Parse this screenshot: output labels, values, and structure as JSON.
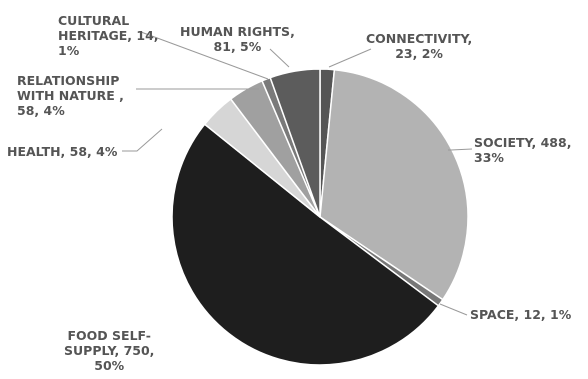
{
  "chart_data": {
    "type": "pie",
    "slices": [
      {
        "name": "CONNECTIVITY",
        "value": 23,
        "percent": "2%",
        "color": "#555555",
        "label_lines": [
          "CONNECTIVITY,",
          "23, 2%"
        ]
      },
      {
        "name": "SOCIETY",
        "value": 488,
        "percent": "33%",
        "color": "#b3b3b3",
        "label_lines": [
          "SOCIETY, 488,",
          "33%"
        ]
      },
      {
        "name": "SPACE",
        "value": 12,
        "percent": "1%",
        "color": "#777777",
        "label_lines": [
          "SPACE, 12, 1%"
        ]
      },
      {
        "name": "FOOD SELF-SUPPLY",
        "value": 750,
        "percent": "50%",
        "color": "#1e1e1e",
        "label_lines": [
          "FOOD SELF-",
          "SUPPLY, 750,",
          "50%"
        ]
      },
      {
        "name": "HEALTH",
        "value": 58,
        "percent": "4%",
        "color": "#d6d6d6",
        "label_lines": [
          "HEALTH, 58, 4%"
        ]
      },
      {
        "name": "RELATIONSHIP WITH NATURE",
        "value": 58,
        "percent": "4%",
        "color": "#a0a0a0",
        "label_lines": [
          "RELATIONSHIP",
          "WITH NATURE ,",
          "58, 4%"
        ]
      },
      {
        "name": "CULTURAL HERITAGE",
        "value": 14,
        "percent": "1%",
        "color": "#7a7a7a",
        "label_lines": [
          "CULTURAL",
          "HERITAGE, 14,",
          "1%"
        ]
      },
      {
        "name": "HUMAN RIGHTS",
        "value": 81,
        "percent": "5%",
        "color": "#5c5c5c",
        "label_lines": [
          "HUMAN RIGHTS,",
          "81, 5%"
        ]
      }
    ],
    "start_angle_deg": 0,
    "direction": "clockwise",
    "border_color": "#ffffff",
    "leader_color": "#9a9a9a",
    "label_color": "#555555"
  }
}
